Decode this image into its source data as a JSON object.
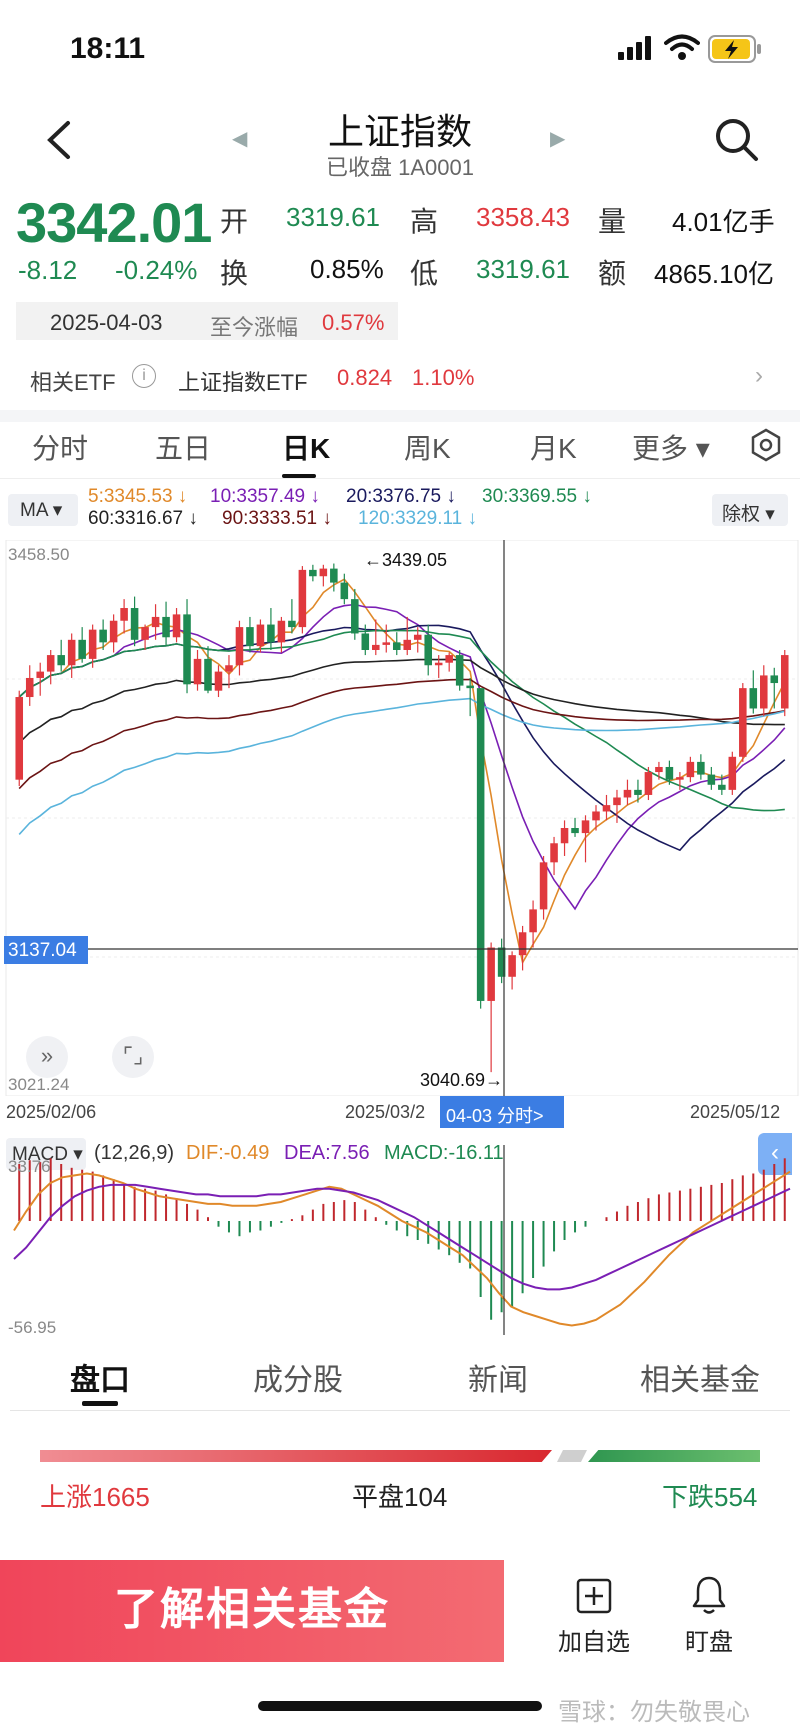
{
  "status_bar": {
    "time": "18:11"
  },
  "header": {
    "title": "上证指数",
    "subtitle": "已收盘 1A0001"
  },
  "quote": {
    "price": "3342.01",
    "change": "-8.12",
    "change_pct": "-0.24%",
    "open_label": "开",
    "open": "3319.61",
    "high_label": "高",
    "high": "3358.43",
    "volume_label": "量",
    "volume": "4.01亿手",
    "turnover_label": "换",
    "turnover": "0.85%",
    "low_label": "低",
    "low": "3319.61",
    "amount_label": "额",
    "amount": "4865.10亿",
    "date": "2025-04-03",
    "since_label": "至今涨幅",
    "since_value": "0.57%"
  },
  "etf": {
    "label": "相关ETF",
    "info_icon": "i",
    "name": "上证指数ETF",
    "price": "0.824",
    "pct": "1.10%"
  },
  "tabs": [
    "分时",
    "五日",
    "日K",
    "周K",
    "月K",
    "更多 ▾"
  ],
  "ma_legend": {
    "select": "MA ▾",
    "ma5": "5:3345.53 ↓",
    "ma10": "10:3357.49 ↓",
    "ma20": "20:3376.75 ↓",
    "ma30": "30:3369.55 ↓",
    "ma60": "60:3316.67 ↓",
    "ma90": "90:3333.51 ↓",
    "ma120": "120:3329.11 ↓",
    "rights": "除权 ▾"
  },
  "colors": {
    "up": "#e0393e",
    "down": "#1f8a52",
    "ma5": "#e0892a",
    "ma10": "#7a1fb4",
    "ma20": "#1a1a5e",
    "ma30": "#1f8a52",
    "ma60": "#222222",
    "ma90": "#6b1414",
    "ma120": "#5ab4dc"
  },
  "kline": {
    "y_max_label": "3458.50",
    "y_min_label": "3021.24",
    "cursor_value": "3137.04",
    "high_marker": "←3439.05",
    "low_marker": "3040.69→",
    "x_start": "2025/02/06",
    "x_mid": "2025/03/2",
    "x_end": "2025/05/12",
    "cursor_date": "04-03 分时>"
  },
  "chart_data": {
    "type": "candlestick",
    "ylim": [
      3021.24,
      3458.5
    ],
    "x_start": "2025/02/06",
    "x_end": "2025/05/12",
    "candles_ohlc": [
      [
        3270,
        3340,
        3265,
        3335
      ],
      [
        3335,
        3360,
        3328,
        3350
      ],
      [
        3350,
        3362,
        3336,
        3355
      ],
      [
        3355,
        3372,
        3345,
        3368
      ],
      [
        3368,
        3380,
        3355,
        3360
      ],
      [
        3360,
        3385,
        3350,
        3380
      ],
      [
        3380,
        3390,
        3362,
        3365
      ],
      [
        3365,
        3392,
        3358,
        3388
      ],
      [
        3388,
        3396,
        3372,
        3378
      ],
      [
        3378,
        3400,
        3370,
        3395
      ],
      [
        3395,
        3412,
        3385,
        3405
      ],
      [
        3405,
        3414,
        3375,
        3380
      ],
      [
        3380,
        3392,
        3372,
        3390
      ],
      [
        3390,
        3408,
        3380,
        3398
      ],
      [
        3398,
        3410,
        3375,
        3382
      ],
      [
        3382,
        3405,
        3378,
        3400
      ],
      [
        3400,
        3412,
        3338,
        3345
      ],
      [
        3345,
        3372,
        3340,
        3365
      ],
      [
        3365,
        3375,
        3338,
        3340
      ],
      [
        3340,
        3360,
        3335,
        3355
      ],
      [
        3355,
        3368,
        3342,
        3360
      ],
      [
        3360,
        3395,
        3352,
        3390
      ],
      [
        3390,
        3398,
        3370,
        3375
      ],
      [
        3375,
        3396,
        3370,
        3392
      ],
      [
        3392,
        3405,
        3372,
        3378
      ],
      [
        3378,
        3398,
        3370,
        3395
      ],
      [
        3395,
        3412,
        3385,
        3390
      ],
      [
        3390,
        3438,
        3385,
        3435
      ],
      [
        3435,
        3439,
        3426,
        3430
      ],
      [
        3430,
        3439,
        3422,
        3436
      ],
      [
        3436,
        3440,
        3418,
        3425
      ],
      [
        3425,
        3432,
        3408,
        3412
      ],
      [
        3412,
        3420,
        3380,
        3385
      ],
      [
        3385,
        3392,
        3368,
        3372
      ],
      [
        3372,
        3396,
        3368,
        3376
      ],
      [
        3376,
        3392,
        3370,
        3378
      ],
      [
        3378,
        3386,
        3368,
        3372
      ],
      [
        3372,
        3398,
        3368,
        3380
      ],
      [
        3380,
        3390,
        3370,
        3384
      ],
      [
        3384,
        3392,
        3352,
        3360
      ],
      [
        3360,
        3368,
        3350,
        3362
      ],
      [
        3362,
        3370,
        3355,
        3368
      ],
      [
        3368,
        3372,
        3340,
        3344
      ],
      [
        3344,
        3350,
        3320,
        3342
      ],
      [
        3342,
        3342,
        3090,
        3096
      ],
      [
        3096,
        3142,
        3040,
        3138
      ],
      [
        3138,
        3145,
        3110,
        3115
      ],
      [
        3115,
        3135,
        3105,
        3132
      ],
      [
        3132,
        3155,
        3120,
        3150
      ],
      [
        3150,
        3175,
        3138,
        3168
      ],
      [
        3168,
        3210,
        3160,
        3205
      ],
      [
        3205,
        3225,
        3195,
        3220
      ],
      [
        3220,
        3238,
        3210,
        3232
      ],
      [
        3232,
        3240,
        3225,
        3228
      ],
      [
        3228,
        3242,
        3205,
        3238
      ],
      [
        3238,
        3250,
        3230,
        3245
      ],
      [
        3245,
        3258,
        3238,
        3250
      ],
      [
        3250,
        3262,
        3236,
        3256
      ],
      [
        3256,
        3270,
        3250,
        3262
      ],
      [
        3262,
        3270,
        3252,
        3258
      ],
      [
        3258,
        3280,
        3254,
        3276
      ],
      [
        3276,
        3284,
        3270,
        3280
      ],
      [
        3280,
        3285,
        3266,
        3270
      ],
      [
        3270,
        3276,
        3262,
        3272
      ],
      [
        3272,
        3288,
        3268,
        3284
      ],
      [
        3284,
        3290,
        3270,
        3274
      ],
      [
        3274,
        3280,
        3262,
        3266
      ],
      [
        3266,
        3274,
        3258,
        3262
      ],
      [
        3262,
        3292,
        3258,
        3288
      ],
      [
        3288,
        3346,
        3284,
        3342
      ],
      [
        3342,
        3356,
        3322,
        3326
      ],
      [
        3326,
        3360,
        3320,
        3352
      ],
      [
        3352,
        3358,
        3326,
        3346
      ],
      [
        3326,
        3372,
        3320,
        3368
      ]
    ],
    "series": [
      {
        "name": "MA5"
      },
      {
        "name": "MA10"
      },
      {
        "name": "MA20"
      },
      {
        "name": "MA30"
      },
      {
        "name": "MA60"
      },
      {
        "name": "MA90"
      },
      {
        "name": "MA120"
      }
    ]
  },
  "macd": {
    "select": "MACD ▾",
    "params": "(12,26,9)",
    "dif": "DIF:-0.49",
    "dea": "DEA:7.56",
    "macd": "MACD:-16.11",
    "y_max": "33.76",
    "y_min": "-56.95",
    "histogram": [
      30,
      32,
      31,
      33,
      30,
      28,
      27,
      26,
      24,
      22,
      20,
      18,
      17,
      16,
      14,
      12,
      9,
      6,
      2,
      -3,
      -6,
      -8,
      -6,
      -5,
      -3,
      -1,
      1,
      3,
      6,
      9,
      10,
      11,
      10,
      6,
      2,
      -2,
      -5,
      -8,
      -10,
      -12,
      -15,
      -18,
      -22,
      -25,
      -40,
      -52,
      -48,
      -45,
      -38,
      -30,
      -24,
      -16,
      -10,
      -6,
      -3,
      0,
      2,
      5,
      8,
      10,
      12,
      14,
      15,
      16,
      17,
      18,
      19,
      20,
      22,
      24,
      25,
      27,
      30,
      33
    ],
    "dif_values": [
      -5,
      5,
      14,
      20,
      23,
      24,
      25,
      24,
      22,
      20,
      17,
      15,
      13,
      12,
      11,
      10,
      9,
      9,
      8,
      8,
      8,
      9,
      10,
      12,
      14,
      16,
      18,
      17,
      14,
      11,
      8,
      4,
      0,
      -3,
      -6,
      -10,
      -14,
      -18,
      -24,
      -30,
      -38,
      -45,
      -48,
      -50,
      -52,
      -54,
      -55,
      -54,
      -52,
      -48,
      -44,
      -38,
      -32,
      -25,
      -18,
      -12,
      -6,
      -2,
      2,
      6,
      10,
      14,
      18,
      22,
      26
    ],
    "dea_values": [
      -20,
      -14,
      -6,
      2,
      8,
      13,
      16,
      18,
      19,
      19,
      19,
      18,
      17,
      16,
      15,
      14,
      14,
      13,
      13,
      13,
      13,
      14,
      14,
      15,
      16,
      17,
      17,
      16,
      15,
      13,
      11,
      8,
      5,
      2,
      -2,
      -6,
      -10,
      -14,
      -18,
      -22,
      -26,
      -30,
      -33,
      -35,
      -36,
      -36,
      -35,
      -33,
      -31,
      -28,
      -25,
      -22,
      -19,
      -16,
      -13,
      -10,
      -7,
      -4,
      -1,
      2,
      5,
      8,
      11,
      14,
      17
    ]
  },
  "lower_tabs": [
    "盘口",
    "成分股",
    "新闻",
    "相关基金"
  ],
  "breadth": {
    "up": "上涨1665",
    "flat": "平盘104",
    "down": "下跌554"
  },
  "bottom_bar": {
    "cta": "了解相关基金",
    "add_watch": "加自选",
    "monitor": "盯盘"
  },
  "watermark": "雪球：勿失敬畏心"
}
